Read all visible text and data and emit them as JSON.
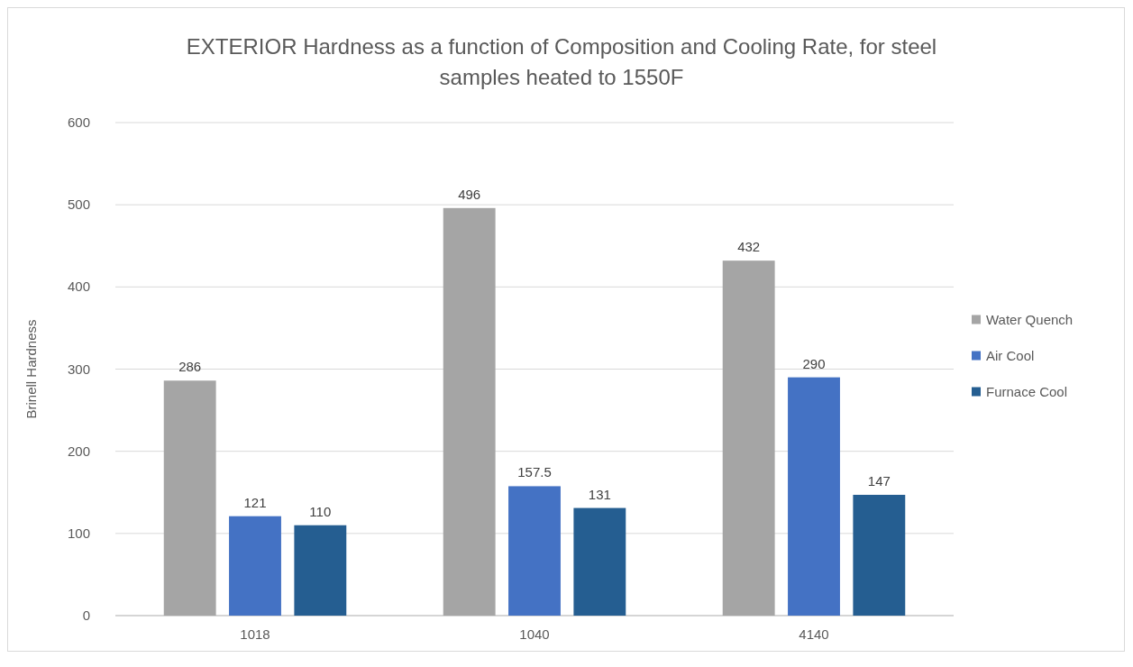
{
  "chart_data": {
    "type": "bar",
    "title": "EXTERIOR Hardness as a function of Composition and Cooling Rate, for steel samples heated to 1550F",
    "ylabel": "Brinell Hardness",
    "categories": [
      "1018",
      "1040",
      "4140"
    ],
    "series": [
      {
        "name": "Water Quench",
        "color": "#a5a5a5",
        "values": [
          286,
          496,
          432
        ]
      },
      {
        "name": "Air Cool",
        "color": "#4472c4",
        "values": [
          121,
          157.5,
          290
        ]
      },
      {
        "name": "Furnace Cool",
        "color": "#255e91",
        "values": [
          110,
          131,
          147
        ]
      }
    ],
    "ylim": [
      0,
      600
    ],
    "yticks": [
      0,
      100,
      200,
      300,
      400,
      500,
      600
    ],
    "grid": "y",
    "legend": "right",
    "data_labels": true
  }
}
